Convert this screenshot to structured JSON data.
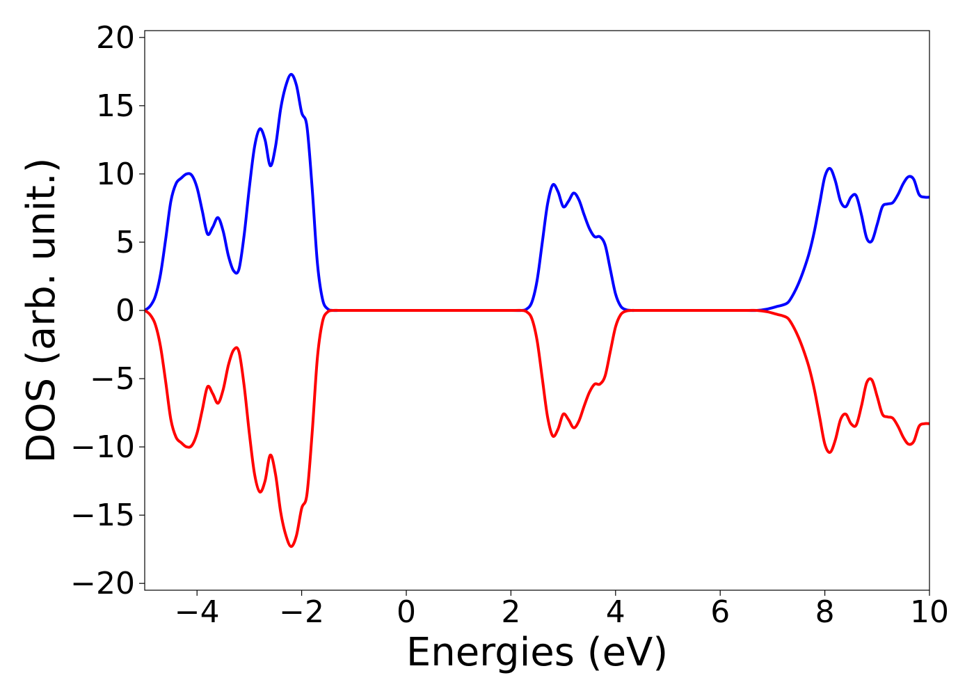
{
  "chart_data": {
    "type": "line",
    "title": "",
    "xlabel": "Energies (eV)",
    "ylabel": "DOS (arb. unit.)",
    "xlim": [
      -5,
      10
    ],
    "ylim": [
      -20.5,
      20.5
    ],
    "xticks": [
      -4,
      -2,
      0,
      2,
      4,
      6,
      8,
      10
    ],
    "xtick_labels": [
      "−4",
      "−2",
      "0",
      "2",
      "4",
      "6",
      "8",
      "10"
    ],
    "yticks": [
      20,
      15,
      10,
      5,
      0,
      -5,
      -10,
      -15,
      -20
    ],
    "ytick_labels": [
      "20",
      "15",
      "10",
      "5",
      "0",
      "−5",
      "−10",
      "−15",
      "−20"
    ],
    "grid": false,
    "legend": "none",
    "series": [
      {
        "color": "#0000ff",
        "x": [
          -5.0,
          -4.9,
          -4.8,
          -4.7,
          -4.6,
          -4.5,
          -4.4,
          -4.3,
          -4.2,
          -4.1,
          -4.0,
          -3.9,
          -3.8,
          -3.7,
          -3.6,
          -3.5,
          -3.4,
          -3.3,
          -3.2,
          -3.1,
          -3.0,
          -2.9,
          -2.8,
          -2.7,
          -2.6,
          -2.5,
          -2.4,
          -2.3,
          -2.2,
          -2.1,
          -2.0,
          -1.9,
          -1.8,
          -1.7,
          -1.6,
          -1.5,
          -1.4,
          -1.3,
          -1.2,
          -1.1,
          -1.0,
          -0.9,
          -0.8,
          -0.7,
          -0.6,
          -0.5,
          0.0,
          1.0,
          2.0,
          2.2,
          2.3,
          2.4,
          2.5,
          2.6,
          2.7,
          2.8,
          2.9,
          3.0,
          3.1,
          3.2,
          3.3,
          3.4,
          3.5,
          3.6,
          3.7,
          3.8,
          3.9,
          4.0,
          4.1,
          4.2,
          4.3,
          4.4,
          4.5,
          4.6,
          4.7,
          4.8,
          5.0,
          6.0,
          6.5,
          6.7,
          6.9,
          7.1,
          7.2,
          7.3,
          7.4,
          7.5,
          7.6,
          7.7,
          7.8,
          7.9,
          8.0,
          8.1,
          8.2,
          8.3,
          8.4,
          8.5,
          8.6,
          8.7,
          8.8,
          8.9,
          9.0,
          9.1,
          9.2,
          9.3,
          9.4,
          9.5,
          9.6,
          9.7,
          9.8,
          9.9,
          10.0
        ],
        "y": [
          0.0,
          0.3,
          1.0,
          2.6,
          5.2,
          8.0,
          9.3,
          9.7,
          10.0,
          9.9,
          9.0,
          7.3,
          5.6,
          6.1,
          6.8,
          5.8,
          4.0,
          2.9,
          3.0,
          5.5,
          9.0,
          12.0,
          13.3,
          12.5,
          10.6,
          12.0,
          14.8,
          16.5,
          17.3,
          16.5,
          14.5,
          13.5,
          9.0,
          3.5,
          0.8,
          0.1,
          0.0,
          0.0,
          0.0,
          0.0,
          0.0,
          0.0,
          0.0,
          0.0,
          0.0,
          0.0,
          0.0,
          0.0,
          0.0,
          0.0,
          0.1,
          0.6,
          2.2,
          5.0,
          7.8,
          9.2,
          8.7,
          7.6,
          8.0,
          8.6,
          8.1,
          7.0,
          6.0,
          5.4,
          5.4,
          4.8,
          3.0,
          1.2,
          0.3,
          0.05,
          0.0,
          0.0,
          0.0,
          0.0,
          0.0,
          0.0,
          0.0,
          0.0,
          0.0,
          0.0,
          0.1,
          0.3,
          0.4,
          0.6,
          1.2,
          2.0,
          3.0,
          4.2,
          5.8,
          7.8,
          9.8,
          10.4,
          9.5,
          8.0,
          7.6,
          8.3,
          8.4,
          7.0,
          5.3,
          5.1,
          6.3,
          7.6,
          7.8,
          7.9,
          8.5,
          9.3,
          9.8,
          9.6,
          8.5,
          8.3,
          8.3
        ],
        "mirror": false
      },
      {
        "color": "#ff0000",
        "x": [
          -5.0,
          -4.9,
          -4.8,
          -4.7,
          -4.6,
          -4.5,
          -4.4,
          -4.3,
          -4.2,
          -4.1,
          -4.0,
          -3.9,
          -3.8,
          -3.7,
          -3.6,
          -3.5,
          -3.4,
          -3.3,
          -3.2,
          -3.1,
          -3.0,
          -2.9,
          -2.8,
          -2.7,
          -2.6,
          -2.5,
          -2.4,
          -2.3,
          -2.2,
          -2.1,
          -2.0,
          -1.9,
          -1.8,
          -1.7,
          -1.6,
          -1.5,
          -1.4,
          -1.3,
          -1.2,
          -1.1,
          -1.0,
          -0.9,
          -0.8,
          -0.7,
          -0.6,
          -0.5,
          0.0,
          1.0,
          2.0,
          2.2,
          2.3,
          2.4,
          2.5,
          2.6,
          2.7,
          2.8,
          2.9,
          3.0,
          3.1,
          3.2,
          3.3,
          3.4,
          3.5,
          3.6,
          3.7,
          3.8,
          3.9,
          4.0,
          4.1,
          4.2,
          4.3,
          4.4,
          4.5,
          4.6,
          4.7,
          4.8,
          5.0,
          6.0,
          6.5,
          6.7,
          6.9,
          7.1,
          7.2,
          7.3,
          7.4,
          7.5,
          7.6,
          7.7,
          7.8,
          7.9,
          8.0,
          8.1,
          8.2,
          8.3,
          8.4,
          8.5,
          8.6,
          8.7,
          8.8,
          8.9,
          9.0,
          9.1,
          9.2,
          9.3,
          9.4,
          9.5,
          9.6,
          9.7,
          9.8,
          9.9,
          10.0
        ],
        "y": [
          0.0,
          -0.3,
          -1.0,
          -2.6,
          -5.2,
          -8.0,
          -9.3,
          -9.7,
          -10.0,
          -9.9,
          -9.0,
          -7.3,
          -5.6,
          -6.1,
          -6.8,
          -5.8,
          -4.0,
          -2.9,
          -3.0,
          -5.5,
          -9.0,
          -12.0,
          -13.3,
          -12.5,
          -10.6,
          -12.0,
          -14.8,
          -16.5,
          -17.3,
          -16.5,
          -14.5,
          -13.5,
          -9.0,
          -3.5,
          -0.8,
          -0.1,
          0.0,
          0.0,
          0.0,
          0.0,
          0.0,
          0.0,
          0.0,
          0.0,
          0.0,
          0.0,
          0.0,
          0.0,
          0.0,
          0.0,
          -0.1,
          -0.6,
          -2.2,
          -5.0,
          -7.8,
          -9.2,
          -8.7,
          -7.6,
          -8.0,
          -8.6,
          -8.1,
          -7.0,
          -6.0,
          -5.4,
          -5.4,
          -4.8,
          -3.0,
          -1.2,
          -0.3,
          -0.05,
          0.0,
          0.0,
          0.0,
          0.0,
          0.0,
          0.0,
          0.0,
          0.0,
          0.0,
          0.0,
          -0.1,
          -0.3,
          -0.4,
          -0.6,
          -1.2,
          -2.0,
          -3.0,
          -4.2,
          -5.8,
          -7.8,
          -9.8,
          -10.4,
          -9.5,
          -8.0,
          -7.6,
          -8.3,
          -8.4,
          -7.0,
          -5.3,
          -5.1,
          -6.3,
          -7.6,
          -7.8,
          -7.9,
          -8.5,
          -9.3,
          -9.8,
          -9.6,
          -8.5,
          -8.3,
          -8.3
        ],
        "mirror": false
      }
    ]
  }
}
